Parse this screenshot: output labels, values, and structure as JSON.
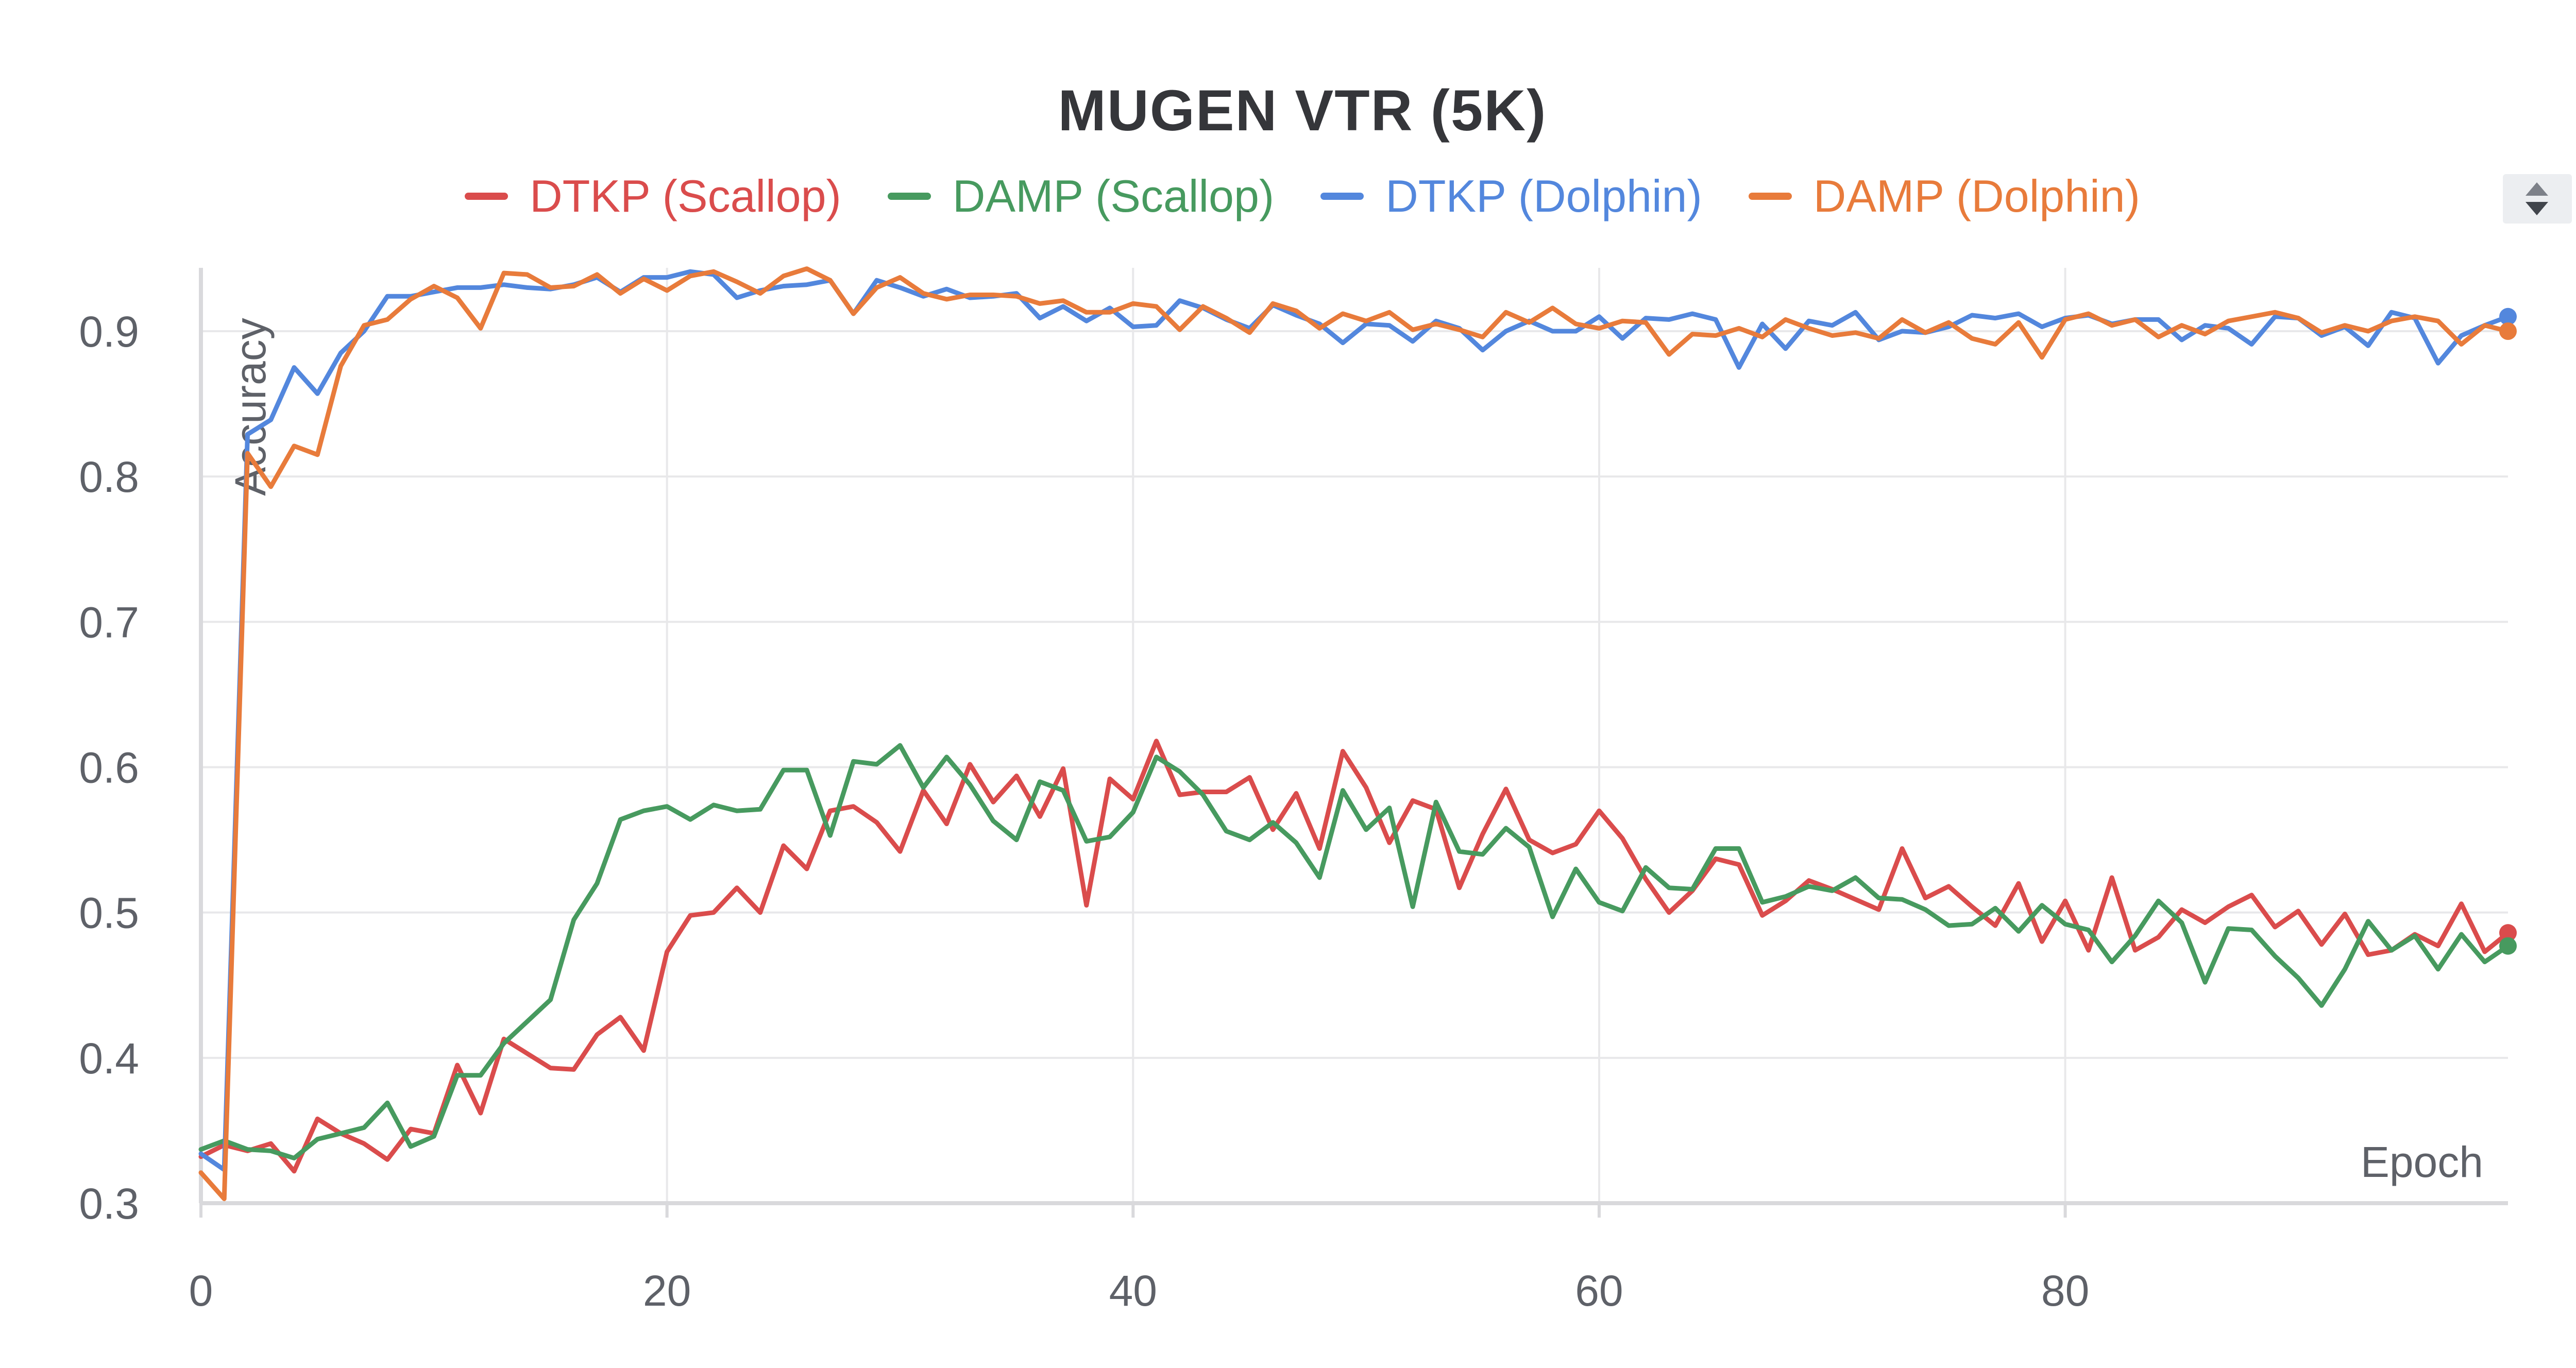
{
  "chart_data": {
    "type": "line",
    "title": "MUGEN VTR (5K)",
    "xlabel": "Epoch",
    "ylabel": "Accuracy",
    "xlim": [
      0,
      99
    ],
    "ylim": [
      0.3,
      0.95
    ],
    "xticks": [
      0,
      20,
      40,
      60,
      80
    ],
    "xtick_labels": [
      "0",
      "20",
      "40",
      "60",
      "80"
    ],
    "yticks": [
      0.3,
      0.4,
      0.5,
      0.6,
      0.7,
      0.8,
      0.9
    ],
    "ytick_labels": [
      "0.3",
      "0.4",
      "0.5",
      "0.6",
      "0.7",
      "0.8",
      "0.9"
    ],
    "grid": true,
    "legend_position": "top-center",
    "series": [
      {
        "name": "DTKP (Scallop)",
        "color": "#da4c4c",
        "values": [
          0.332,
          0.34,
          0.336,
          0.341,
          0.322,
          0.358,
          0.348,
          0.341,
          0.33,
          0.351,
          0.348,
          0.395,
          0.362,
          0.413,
          0.403,
          0.393,
          0.392,
          0.416,
          0.428,
          0.405,
          0.473,
          0.498,
          0.5,
          0.517,
          0.5,
          0.546,
          0.53,
          0.57,
          0.573,
          0.562,
          0.542,
          0.584,
          0.561,
          0.602,
          0.576,
          0.594,
          0.566,
          0.599,
          0.505,
          0.592,
          0.578,
          0.618,
          0.581,
          0.583,
          0.583,
          0.593,
          0.557,
          0.582,
          0.544,
          0.611,
          0.586,
          0.548,
          0.577,
          0.571,
          0.517,
          0.554,
          0.585,
          0.55,
          0.541,
          0.547,
          0.57,
          0.551,
          0.523,
          0.5,
          0.515,
          0.537,
          0.533,
          0.498,
          0.508,
          0.522,
          0.516,
          0.509,
          0.502,
          0.544,
          0.51,
          0.518,
          0.504,
          0.491,
          0.52,
          0.48,
          0.508,
          0.474,
          0.524,
          0.474,
          0.483,
          0.502,
          0.493,
          0.504,
          0.512,
          0.49,
          0.501,
          0.478,
          0.499,
          0.471,
          0.474,
          0.485,
          0.477,
          0.506,
          0.473,
          0.486
        ]
      },
      {
        "name": "DAMP (Scallop)",
        "color": "#479a5f",
        "values": [
          0.337,
          0.343,
          0.337,
          0.336,
          0.331,
          0.344,
          0.348,
          0.352,
          0.369,
          0.339,
          0.346,
          0.388,
          0.388,
          0.41,
          0.425,
          0.44,
          0.495,
          0.52,
          0.564,
          0.57,
          0.573,
          0.564,
          0.574,
          0.57,
          0.571,
          0.598,
          0.598,
          0.553,
          0.604,
          0.602,
          0.615,
          0.586,
          0.607,
          0.588,
          0.563,
          0.55,
          0.59,
          0.584,
          0.549,
          0.552,
          0.569,
          0.607,
          0.597,
          0.581,
          0.556,
          0.55,
          0.562,
          0.548,
          0.524,
          0.584,
          0.557,
          0.572,
          0.504,
          0.576,
          0.542,
          0.54,
          0.558,
          0.545,
          0.497,
          0.53,
          0.507,
          0.501,
          0.531,
          0.517,
          0.516,
          0.544,
          0.544,
          0.507,
          0.511,
          0.518,
          0.515,
          0.524,
          0.51,
          0.509,
          0.502,
          0.491,
          0.492,
          0.503,
          0.487,
          0.505,
          0.492,
          0.488,
          0.466,
          0.484,
          0.508,
          0.493,
          0.452,
          0.489,
          0.488,
          0.47,
          0.455,
          0.436,
          0.461,
          0.494,
          0.474,
          0.484,
          0.461,
          0.485,
          0.466,
          0.477
        ]
      },
      {
        "name": "DTKP (Dolphin)",
        "color": "#5387dd",
        "values": [
          0.334,
          0.323,
          0.829,
          0.839,
          0.875,
          0.857,
          0.885,
          0.9,
          0.924,
          0.924,
          0.927,
          0.93,
          0.93,
          0.932,
          0.93,
          0.929,
          0.932,
          0.937,
          0.927,
          0.937,
          0.937,
          0.941,
          0.939,
          0.923,
          0.928,
          0.931,
          0.932,
          0.935,
          0.912,
          0.935,
          0.93,
          0.924,
          0.929,
          0.923,
          0.924,
          0.926,
          0.909,
          0.917,
          0.907,
          0.916,
          0.903,
          0.904,
          0.921,
          0.916,
          0.908,
          0.902,
          0.918,
          0.911,
          0.905,
          0.892,
          0.905,
          0.904,
          0.893,
          0.907,
          0.902,
          0.887,
          0.9,
          0.907,
          0.9,
          0.9,
          0.91,
          0.895,
          0.909,
          0.908,
          0.912,
          0.908,
          0.875,
          0.905,
          0.888,
          0.907,
          0.904,
          0.913,
          0.894,
          0.9,
          0.899,
          0.903,
          0.911,
          0.909,
          0.912,
          0.903,
          0.909,
          0.911,
          0.905,
          0.908,
          0.908,
          0.894,
          0.904,
          0.902,
          0.891,
          0.91,
          0.909,
          0.897,
          0.903,
          0.89,
          0.913,
          0.909,
          0.878,
          0.897,
          0.904,
          0.91
        ]
      },
      {
        "name": "DAMP (Dolphin)",
        "color": "#e87b3b",
        "values": [
          0.321,
          0.303,
          0.816,
          0.793,
          0.821,
          0.815,
          0.876,
          0.904,
          0.908,
          0.922,
          0.931,
          0.923,
          0.902,
          0.94,
          0.939,
          0.93,
          0.931,
          0.939,
          0.926,
          0.936,
          0.928,
          0.938,
          0.941,
          0.934,
          0.926,
          0.938,
          0.943,
          0.935,
          0.912,
          0.93,
          0.937,
          0.926,
          0.922,
          0.925,
          0.925,
          0.924,
          0.919,
          0.921,
          0.913,
          0.913,
          0.919,
          0.917,
          0.901,
          0.917,
          0.909,
          0.899,
          0.919,
          0.914,
          0.902,
          0.912,
          0.907,
          0.913,
          0.901,
          0.905,
          0.901,
          0.896,
          0.913,
          0.906,
          0.916,
          0.905,
          0.902,
          0.907,
          0.906,
          0.884,
          0.898,
          0.897,
          0.902,
          0.896,
          0.908,
          0.902,
          0.897,
          0.899,
          0.895,
          0.908,
          0.899,
          0.906,
          0.895,
          0.891,
          0.906,
          0.882,
          0.908,
          0.912,
          0.904,
          0.908,
          0.896,
          0.904,
          0.898,
          0.907,
          0.91,
          0.913,
          0.909,
          0.899,
          0.904,
          0.9,
          0.907,
          0.91,
          0.907,
          0.891,
          0.904,
          0.9
        ]
      }
    ]
  }
}
